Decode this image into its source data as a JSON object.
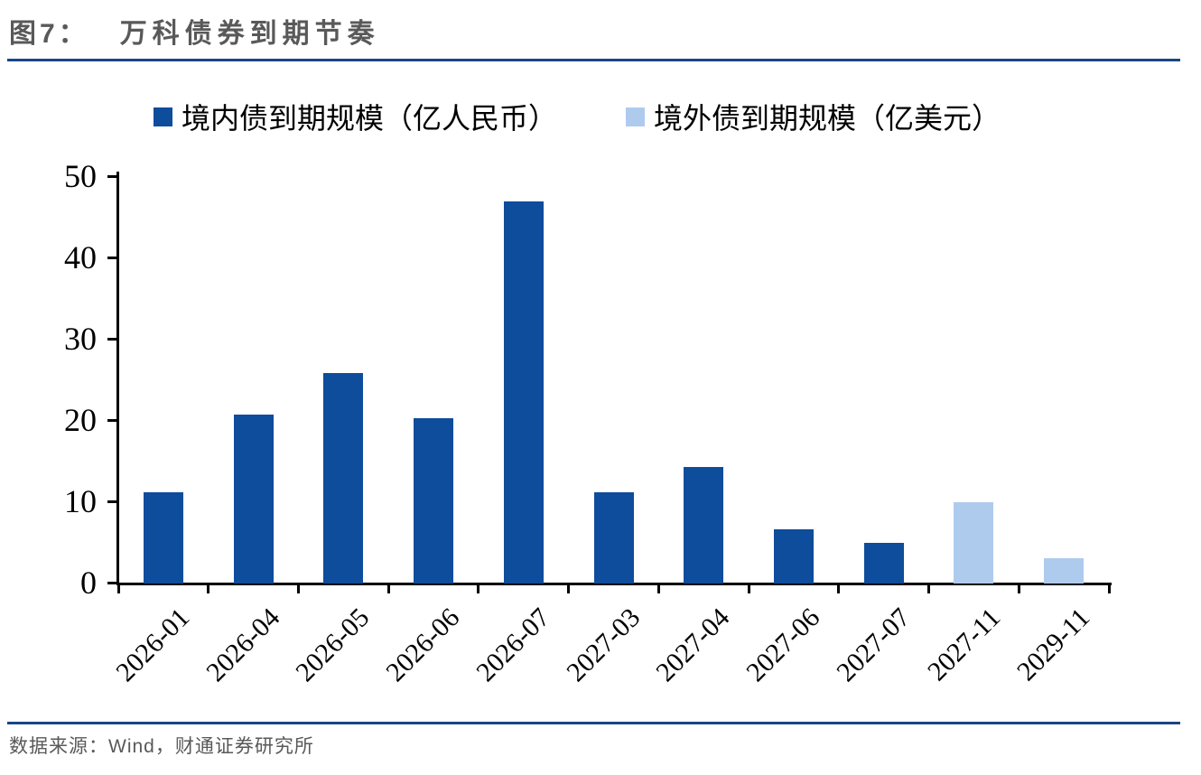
{
  "header": {
    "figure_label": "图7：",
    "title": "万科债券到期节奏"
  },
  "footer": {
    "source": "数据来源：Wind，财通证券研究所"
  },
  "colors": {
    "domestic_bar": "#0E4C9C",
    "overseas_bar": "#AECBEE",
    "rule_line": "#1A4586",
    "gray_text": "#595959",
    "axis": "#000000"
  },
  "chart_data": {
    "type": "bar",
    "title": "万科债券到期节奏",
    "categories": [
      "2026-01",
      "2026-04",
      "2026-05",
      "2026-06",
      "2026-07",
      "2027-03",
      "2027-04",
      "2027-06",
      "2027-07",
      "2027-11",
      "2029-11"
    ],
    "series": [
      {
        "name": "境内债到期规模（亿人民币）",
        "color": "#0E4C9C",
        "values": [
          11.2,
          20.8,
          25.9,
          20.3,
          47,
          11.2,
          14.3,
          6.7,
          5,
          null,
          null
        ]
      },
      {
        "name": "境外债到期规模（亿美元）",
        "color": "#AECBEE",
        "values": [
          null,
          null,
          null,
          null,
          null,
          null,
          null,
          null,
          null,
          10,
          3.1
        ]
      }
    ],
    "xlabel": "",
    "ylabel": "",
    "ylim": [
      0,
      50
    ],
    "yticks": [
      0,
      10,
      20,
      30,
      40,
      50
    ],
    "grid": false,
    "legend_position": "top"
  }
}
